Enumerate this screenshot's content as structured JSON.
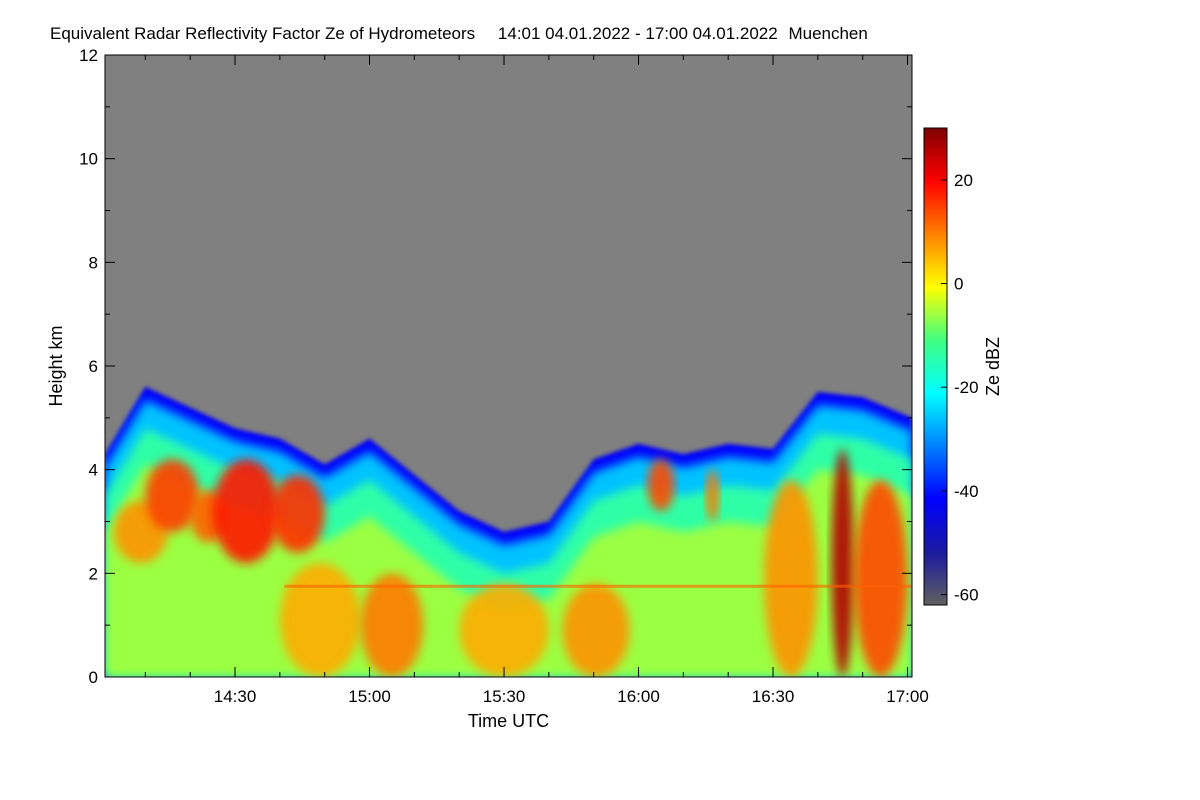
{
  "chart_data": {
    "type": "heatmap",
    "title": "Equivalent Radar Reflectivity Factor Ze of Hydrometeors",
    "time_range": "14:01 04.01.2022 - 17:00 04.01.2022",
    "location": "Muenchen",
    "xlabel": "Time UTC",
    "ylabel": "Height km",
    "xlim_minutes_utc": [
      841,
      1021
    ],
    "xticks": [
      {
        "value": 870,
        "label": "14:30"
      },
      {
        "value": 900,
        "label": "15:00"
      },
      {
        "value": 930,
        "label": "15:30"
      },
      {
        "value": 960,
        "label": "16:00"
      },
      {
        "value": 990,
        "label": "16:30"
      },
      {
        "value": 1020,
        "label": "17:00"
      }
    ],
    "ylim": [
      0,
      12
    ],
    "yticks": [
      0,
      2,
      4,
      6,
      8,
      10,
      12
    ],
    "colorbar": {
      "label": "Ze dBZ",
      "range": [
        -62,
        30
      ],
      "ticks": [
        20,
        0,
        -20,
        -40,
        -60
      ],
      "colormap": [
        "#606060",
        "#1a1aa0",
        "#0000ff",
        "#0080ff",
        "#00ffff",
        "#40ff80",
        "#ffff00",
        "#ff8000",
        "#ff0000",
        "#800000"
      ]
    },
    "background_color": "#808080",
    "cloud_top_km": [
      [
        841,
        4.3
      ],
      [
        850,
        5.6
      ],
      [
        860,
        5.2
      ],
      [
        870,
        4.8
      ],
      [
        880,
        4.6
      ],
      [
        890,
        4.1
      ],
      [
        900,
        4.6
      ],
      [
        910,
        3.9
      ],
      [
        920,
        3.2
      ],
      [
        930,
        2.8
      ],
      [
        940,
        3.0
      ],
      [
        950,
        4.2
      ],
      [
        960,
        4.5
      ],
      [
        970,
        4.3
      ],
      [
        980,
        4.5
      ],
      [
        990,
        4.4
      ],
      [
        1000,
        5.5
      ],
      [
        1010,
        5.4
      ],
      [
        1021,
        5.0
      ]
    ],
    "echo_cells": [
      {
        "t_start": 843,
        "t_end": 855,
        "h_bottom": 2.2,
        "h_top": 3.4,
        "dbz": 8
      },
      {
        "t_start": 850,
        "t_end": 862,
        "h_bottom": 2.8,
        "h_top": 4.2,
        "dbz": 15
      },
      {
        "t_start": 860,
        "t_end": 868,
        "h_bottom": 2.6,
        "h_top": 3.6,
        "dbz": 12
      },
      {
        "t_start": 865,
        "t_end": 880,
        "h_bottom": 2.2,
        "h_top": 4.2,
        "dbz": 18
      },
      {
        "t_start": 878,
        "t_end": 890,
        "h_bottom": 2.4,
        "h_top": 3.9,
        "dbz": 16
      },
      {
        "t_start": 880,
        "t_end": 898,
        "h_bottom": 0.0,
        "h_top": 2.2,
        "dbz": 6
      },
      {
        "t_start": 898,
        "t_end": 912,
        "h_bottom": 0.0,
        "h_top": 2.0,
        "dbz": 10
      },
      {
        "t_start": 920,
        "t_end": 940,
        "h_bottom": 0.0,
        "h_top": 1.8,
        "dbz": 6
      },
      {
        "t_start": 943,
        "t_end": 958,
        "h_bottom": 0.0,
        "h_top": 1.8,
        "dbz": 8
      },
      {
        "t_start": 962,
        "t_end": 968,
        "h_bottom": 3.2,
        "h_top": 4.2,
        "dbz": 14
      },
      {
        "t_start": 975,
        "t_end": 978,
        "h_bottom": 3.0,
        "h_top": 4.0,
        "dbz": 10
      },
      {
        "t_start": 988,
        "t_end": 1000,
        "h_bottom": 0.0,
        "h_top": 3.8,
        "dbz": 8
      },
      {
        "t_start": 1003,
        "t_end": 1008,
        "h_bottom": 0.0,
        "h_top": 4.4,
        "dbz": 26
      },
      {
        "t_start": 1008,
        "t_end": 1020,
        "h_bottom": 0.0,
        "h_top": 3.8,
        "dbz": 14
      }
    ],
    "bright_band_km": 1.75
  }
}
